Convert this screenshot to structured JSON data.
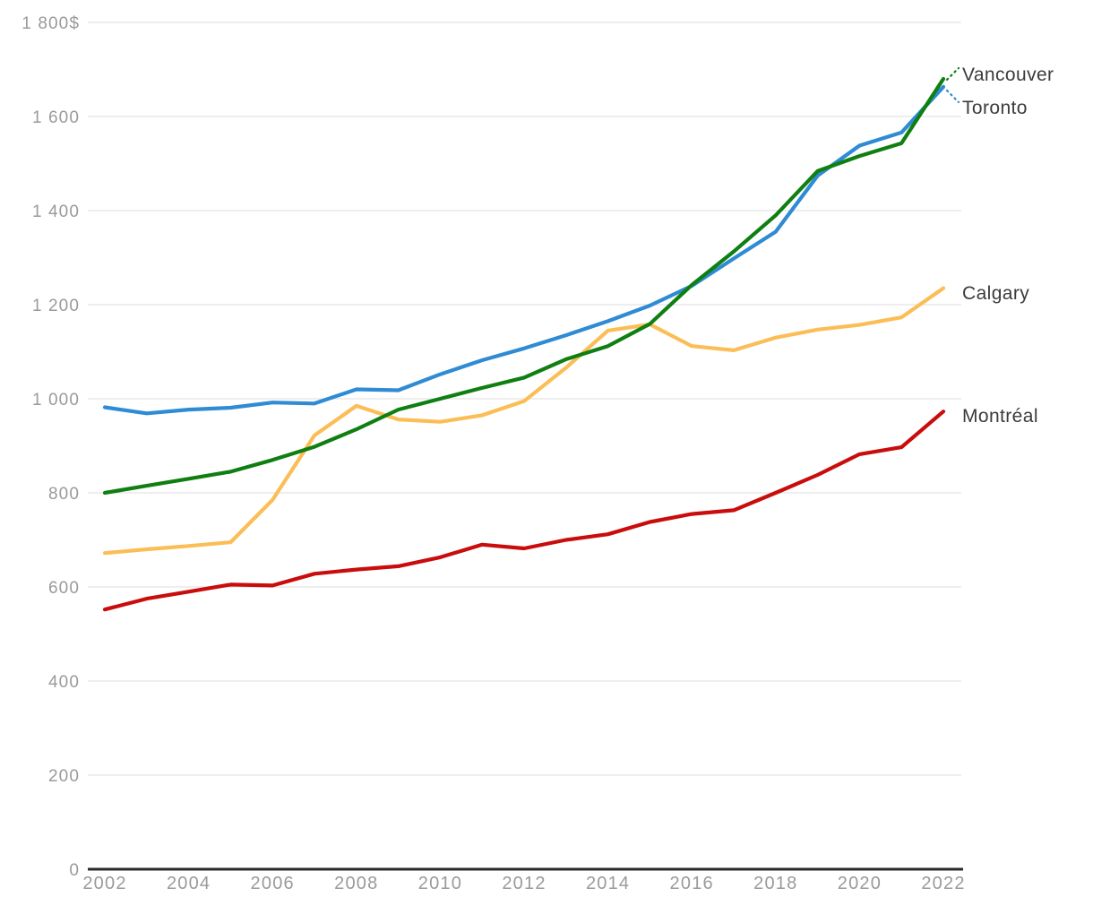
{
  "chart": {
    "title": "",
    "y_axis": {
      "unit_suffix_on_top_label": "$",
      "tick_labels": [
        "0",
        "200",
        "400",
        "600",
        "800",
        "1 000",
        "1 200",
        "1 400",
        "1 600",
        "1 800$"
      ]
    },
    "x_axis": {
      "tick_labels": [
        "2002",
        "2004",
        "2006",
        "2008",
        "2010",
        "2012",
        "2014",
        "2016",
        "2018",
        "2020",
        "2022"
      ]
    }
  },
  "chart_data": {
    "type": "line",
    "x": [
      2002,
      2003,
      2004,
      2005,
      2006,
      2007,
      2008,
      2009,
      2010,
      2011,
      2012,
      2013,
      2014,
      2015,
      2016,
      2017,
      2018,
      2019,
      2020,
      2021,
      2022
    ],
    "series": [
      {
        "name": "Vancouver",
        "color": "#0F7F12",
        "values": [
          800,
          815,
          830,
          845,
          870,
          898,
          935,
          977,
          1000,
          1023,
          1045,
          1084,
          1112,
          1159,
          1242,
          1313,
          1390,
          1484,
          1516,
          1543,
          1680
        ]
      },
      {
        "name": "Toronto",
        "color": "#2E8BD4",
        "values": [
          982,
          969,
          977,
          981,
          992,
          990,
          1020,
          1018,
          1052,
          1082,
          1107,
          1135,
          1165,
          1198,
          1240,
          1298,
          1355,
          1474,
          1538,
          1566,
          1663
        ]
      },
      {
        "name": "Calgary",
        "color": "#FBBE56",
        "values": [
          672,
          680,
          687,
          695,
          785,
          922,
          985,
          956,
          951,
          965,
          995,
          1066,
          1145,
          1158,
          1112,
          1103,
          1130,
          1147,
          1157,
          1173,
          1235
        ]
      },
      {
        "name": "Montréal",
        "color": "#C90C0C",
        "values": [
          552,
          575,
          590,
          605,
          603,
          628,
          637,
          644,
          663,
          690,
          682,
          700,
          712,
          738,
          755,
          763,
          800,
          838,
          882,
          897,
          973
        ]
      }
    ],
    "ylim": [
      0,
      1800
    ],
    "y_tick_values": [
      0,
      200,
      400,
      600,
      800,
      1000,
      1200,
      1400,
      1600,
      1800
    ],
    "x_tick_values": [
      2002,
      2004,
      2006,
      2008,
      2010,
      2012,
      2014,
      2016,
      2018,
      2020,
      2022
    ],
    "grid": true,
    "legend_position": "end-of-line labels",
    "style": {
      "grid_color": "#E8E8E8",
      "axis_color": "#2B2B2B",
      "tick_label_color": "#9A9A9A",
      "series_label_color": "#3B3B3B"
    }
  }
}
